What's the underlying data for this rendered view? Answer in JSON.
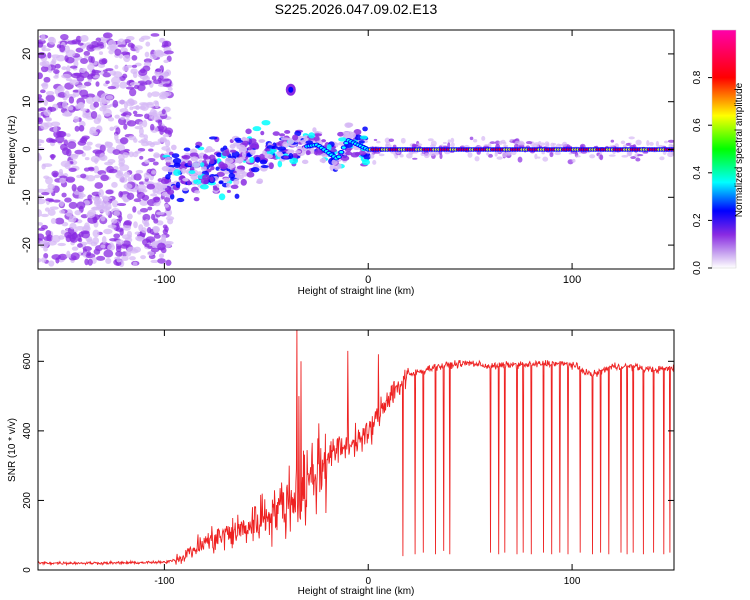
{
  "title": "S225.2026.047.09.02.E13",
  "chart_data": [
    {
      "type": "heatmap",
      "xlabel": "Height of straight line (km)",
      "ylabel": "Frequency (Hz)",
      "xlim": [
        -162,
        150
      ],
      "ylim": [
        -25,
        25
      ],
      "xticks": [
        -100,
        0,
        100
      ],
      "xtick_labels": [
        "-100",
        "0",
        "100"
      ],
      "yticks": [
        -20,
        -10,
        0,
        10,
        20
      ],
      "ytick_labels": [
        "-20",
        "-10",
        "0",
        "10",
        "20"
      ],
      "colorbar": {
        "label": "Normalized spectral amplitude",
        "range": [
          0,
          1
        ],
        "ticks": [
          0.0,
          0.2,
          0.4,
          0.6,
          0.8
        ],
        "tick_labels": [
          "0.0",
          "0.2",
          "0.4",
          "0.6",
          "0.8"
        ],
        "colors": [
          "#ffffff",
          "#d6b8f5",
          "#8a2be2",
          "#0000ff",
          "#00ffff",
          "#00ff00",
          "#ffff00",
          "#ff0000",
          "#ff00ff"
        ]
      },
      "ridge": {
        "description_points_x": [
          -162,
          -100,
          -80,
          -60,
          -40,
          -25,
          -15,
          -10,
          -5,
          0,
          10,
          50,
          100,
          150
        ],
        "description_points_y": [
          0,
          -6,
          -4,
          -2,
          0,
          1,
          -2,
          2,
          1,
          0,
          0,
          0,
          0,
          0
        ]
      }
    },
    {
      "type": "line",
      "xlabel": "Height of straight line (km)",
      "ylabel": "SNR (10 * v/v)",
      "xlim": [
        -162,
        150
      ],
      "ylim": [
        0,
        690
      ],
      "xticks": [
        -100,
        0,
        100
      ],
      "xtick_labels": [
        "-100",
        "0",
        "100"
      ],
      "yticks": [
        0,
        200,
        400,
        600
      ],
      "ytick_labels": [
        "0",
        "200",
        "400",
        "600"
      ],
      "series": [
        {
          "name": "SNR",
          "color": "#ee2222",
          "x": [
            -162,
            -130,
            -100,
            -92,
            -85,
            -80,
            -70,
            -60,
            -50,
            -40,
            -30,
            -20,
            -10,
            0,
            10,
            20,
            30,
            40,
            50,
            60,
            70,
            80,
            90,
            100,
            105,
            110,
            115,
            120,
            130,
            140,
            150
          ],
          "y": [
            20,
            20,
            22,
            35,
            60,
            80,
            100,
            120,
            160,
            190,
            250,
            330,
            360,
            390,
            500,
            560,
            580,
            590,
            595,
            585,
            590,
            590,
            595,
            590,
            575,
            560,
            575,
            585,
            585,
            575,
            580
          ],
          "spikes_x": [
            -35,
            -34,
            -33,
            -10,
            5,
            17,
            23,
            27,
            33,
            37,
            40,
            60,
            64,
            67,
            73,
            76,
            80,
            86,
            90,
            94,
            98,
            104,
            110,
            114,
            118,
            124,
            127,
            130,
            135,
            140,
            145,
            148
          ],
          "spikes_y": [
            700,
            500,
            600,
            630,
            620,
            40,
            45,
            50,
            45,
            55,
            45,
            50,
            45,
            50,
            45,
            50,
            45,
            50,
            45,
            50,
            45,
            50,
            45,
            50,
            45,
            50,
            45,
            50,
            45,
            50,
            45,
            50
          ]
        }
      ]
    }
  ]
}
